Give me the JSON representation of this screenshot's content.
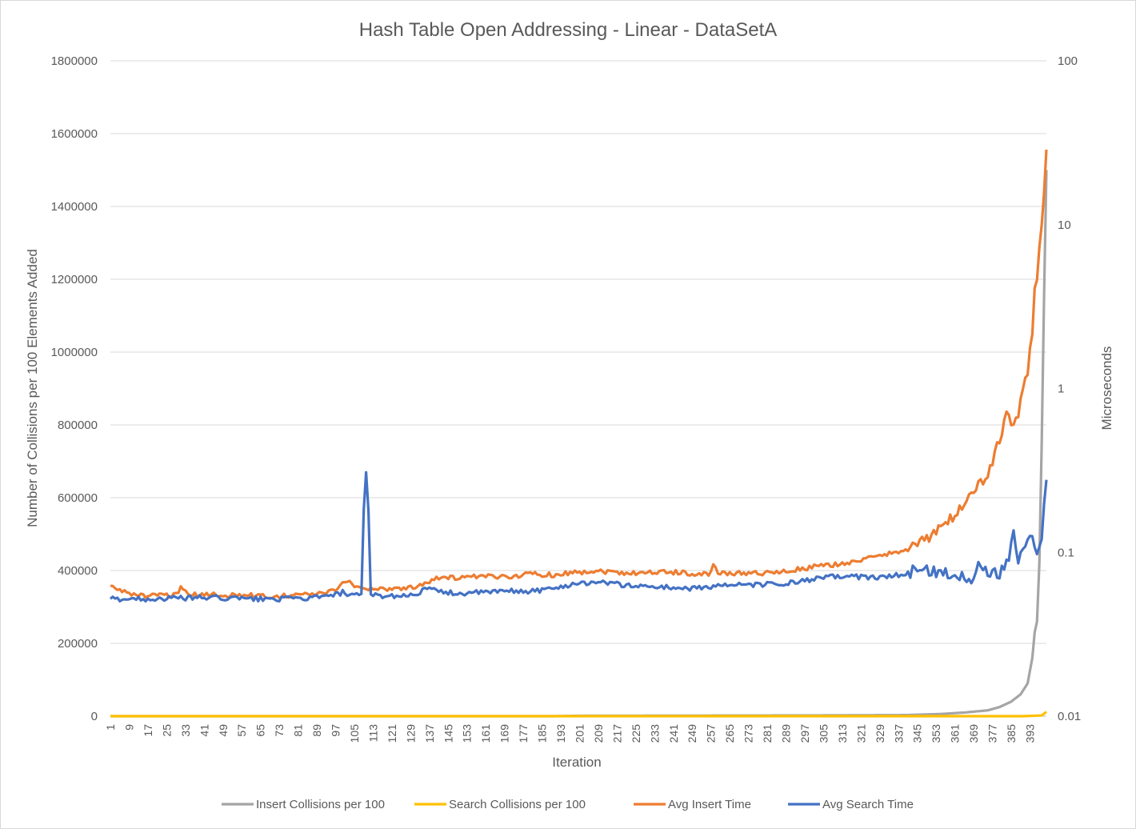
{
  "chart_data": {
    "type": "line",
    "title": "Hash Table Open Addressing - Linear - DataSetA",
    "xlabel": "Iteration",
    "ylabel": "Number of Collisions per 100 Elements Added",
    "y2label": "Microseconds",
    "x_range": [
      1,
      400
    ],
    "x_tick_labels": [
      "1",
      "9",
      "17",
      "25",
      "33",
      "41",
      "49",
      "57",
      "65",
      "73",
      "81",
      "89",
      "97",
      "105",
      "113",
      "121",
      "129",
      "137",
      "145",
      "153",
      "161",
      "169",
      "177",
      "185",
      "193",
      "201",
      "209",
      "217",
      "225",
      "233",
      "241",
      "249",
      "257",
      "265",
      "273",
      "281",
      "289",
      "297",
      "305",
      "313",
      "321",
      "329",
      "337",
      "345",
      "353",
      "361",
      "369",
      "377",
      "385",
      "393"
    ],
    "ylim": [
      0,
      1800000
    ],
    "y_ticks": [
      "0",
      "200000",
      "400000",
      "600000",
      "800000",
      "1000000",
      "1200000",
      "1400000",
      "1600000",
      "1800000"
    ],
    "y2_scale": "log",
    "y2lim": [
      0.01,
      100
    ],
    "y2_ticks": [
      "0.01",
      "0.1",
      "1",
      "10",
      "100"
    ],
    "grid": true,
    "legend_position": "bottom",
    "colors": {
      "insert_collisions": "#a5a5a5",
      "search_collisions": "#ffc000",
      "avg_insert_time": "#ed7d31",
      "avg_search_time": "#4472c4"
    },
    "series": [
      {
        "name": "Insert Collisions per 100",
        "axis": "left",
        "points": [
          [
            1,
            0
          ],
          [
            190,
            0
          ],
          [
            200,
            1000
          ],
          [
            300,
            2000
          ],
          [
            340,
            3000
          ],
          [
            355,
            6000
          ],
          [
            365,
            10000
          ],
          [
            375,
            16000
          ],
          [
            380,
            25000
          ],
          [
            385,
            40000
          ],
          [
            389,
            60000
          ],
          [
            392,
            90000
          ],
          [
            394,
            160000
          ],
          [
            395,
            230000
          ],
          [
            396,
            260000
          ],
          [
            397,
            420000
          ],
          [
            398,
            750000
          ],
          [
            399,
            1150000
          ],
          [
            400,
            1500000
          ]
        ]
      },
      {
        "name": "Search Collisions per 100",
        "axis": "left",
        "points": [
          [
            1,
            0
          ],
          [
            390,
            0
          ],
          [
            398,
            2000
          ],
          [
            400,
            12000
          ]
        ]
      },
      {
        "name": "Avg Insert Time",
        "axis": "right",
        "points": [
          [
            1,
            0.062
          ],
          [
            6,
            0.058
          ],
          [
            12,
            0.055
          ],
          [
            18,
            0.054
          ],
          [
            30,
            0.055
          ],
          [
            31,
            0.06
          ],
          [
            34,
            0.055
          ],
          [
            50,
            0.055
          ],
          [
            70,
            0.054
          ],
          [
            90,
            0.056
          ],
          [
            97,
            0.058
          ],
          [
            102,
            0.068
          ],
          [
            105,
            0.062
          ],
          [
            112,
            0.06
          ],
          [
            120,
            0.06
          ],
          [
            130,
            0.061
          ],
          [
            136,
            0.066
          ],
          [
            140,
            0.07
          ],
          [
            150,
            0.07
          ],
          [
            160,
            0.071
          ],
          [
            170,
            0.071
          ],
          [
            180,
            0.074
          ],
          [
            190,
            0.073
          ],
          [
            200,
            0.076
          ],
          [
            210,
            0.077
          ],
          [
            220,
            0.075
          ],
          [
            240,
            0.076
          ],
          [
            256,
            0.073
          ],
          [
            258,
            0.085
          ],
          [
            260,
            0.074
          ],
          [
            270,
            0.075
          ],
          [
            285,
            0.075
          ],
          [
            295,
            0.079
          ],
          [
            305,
            0.083
          ],
          [
            315,
            0.086
          ],
          [
            325,
            0.092
          ],
          [
            335,
            0.1
          ],
          [
            342,
            0.108
          ],
          [
            350,
            0.122
          ],
          [
            356,
            0.145
          ],
          [
            361,
            0.168
          ],
          [
            365,
            0.2
          ],
          [
            368,
            0.23
          ],
          [
            372,
            0.26
          ],
          [
            375,
            0.3
          ],
          [
            378,
            0.4
          ],
          [
            381,
            0.52
          ],
          [
            383,
            0.7
          ],
          [
            385,
            0.6
          ],
          [
            388,
            0.72
          ],
          [
            390,
            1.0
          ],
          [
            392,
            1.3
          ],
          [
            394,
            2.0
          ],
          [
            395,
            4.0
          ],
          [
            396,
            5.0
          ],
          [
            397,
            7.5
          ],
          [
            398,
            10.5
          ],
          [
            399,
            16
          ],
          [
            400,
            31
          ]
        ]
      },
      {
        "name": "Avg Search Time",
        "axis": "right",
        "points": [
          [
            1,
            0.052
          ],
          [
            20,
            0.052
          ],
          [
            40,
            0.053
          ],
          [
            60,
            0.052
          ],
          [
            80,
            0.052
          ],
          [
            95,
            0.054
          ],
          [
            100,
            0.057
          ],
          [
            104,
            0.054
          ],
          [
            108,
            0.055
          ],
          [
            110,
            0.3
          ],
          [
            112,
            0.055
          ],
          [
            120,
            0.054
          ],
          [
            130,
            0.055
          ],
          [
            136,
            0.06
          ],
          [
            140,
            0.058
          ],
          [
            150,
            0.056
          ],
          [
            160,
            0.057
          ],
          [
            170,
            0.058
          ],
          [
            180,
            0.058
          ],
          [
            190,
            0.06
          ],
          [
            200,
            0.065
          ],
          [
            210,
            0.066
          ],
          [
            220,
            0.063
          ],
          [
            240,
            0.061
          ],
          [
            250,
            0.06
          ],
          [
            260,
            0.063
          ],
          [
            270,
            0.063
          ],
          [
            285,
            0.064
          ],
          [
            295,
            0.066
          ],
          [
            305,
            0.07
          ],
          [
            315,
            0.072
          ],
          [
            325,
            0.07
          ],
          [
            340,
            0.073
          ],
          [
            345,
            0.08
          ],
          [
            350,
            0.078
          ],
          [
            360,
            0.073
          ],
          [
            368,
            0.07
          ],
          [
            372,
            0.085
          ],
          [
            375,
            0.076
          ],
          [
            380,
            0.075
          ],
          [
            384,
            0.095
          ],
          [
            386,
            0.13
          ],
          [
            388,
            0.09
          ],
          [
            392,
            0.12
          ],
          [
            394,
            0.13
          ],
          [
            396,
            0.1
          ],
          [
            398,
            0.115
          ],
          [
            400,
            0.28
          ]
        ]
      }
    ]
  }
}
